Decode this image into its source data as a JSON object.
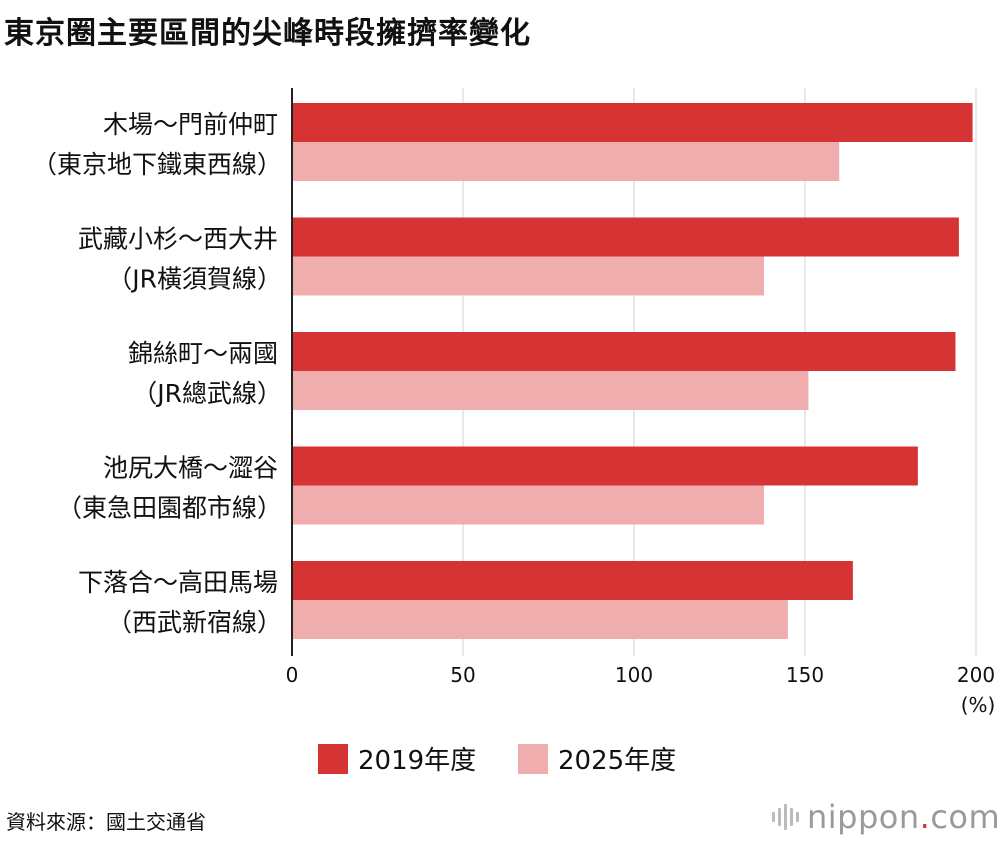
{
  "title": "東京圈主要區間的尖峰時段擁擠率變化",
  "source": "資料來源：國土交通省",
  "brand": {
    "name": "nippon",
    "dot": ".",
    "tld": "com",
    "icon": "nippon-logo-icon"
  },
  "colors": {
    "series_2019": "#d63434",
    "series_2025": "#efadad",
    "grid": "#d0d0d0",
    "axis": "#222222"
  },
  "chart_data": {
    "type": "bar",
    "orientation": "horizontal",
    "categories": [
      [
        "木場～門前仲町",
        "（東京地下鐵東西線）"
      ],
      [
        "武藏小杉～西大井",
        "（JR橫須賀線）"
      ],
      [
        "錦絲町～兩國",
        "（JR總武線）"
      ],
      [
        "池尻大橋～澀谷",
        "（東急田園都市線）"
      ],
      [
        "下落合～高田馬場",
        "（西武新宿線）"
      ]
    ],
    "series": [
      {
        "name": "2019年度",
        "values": [
          199,
          195,
          194,
          183,
          164
        ]
      },
      {
        "name": "2025年度",
        "values": [
          160,
          138,
          151,
          138,
          145
        ]
      }
    ],
    "xlim": [
      0,
      200
    ],
    "xticks": [
      0,
      50,
      100,
      150,
      200
    ],
    "xunit": "(%)",
    "grid": true,
    "legend": "bottom-center"
  }
}
